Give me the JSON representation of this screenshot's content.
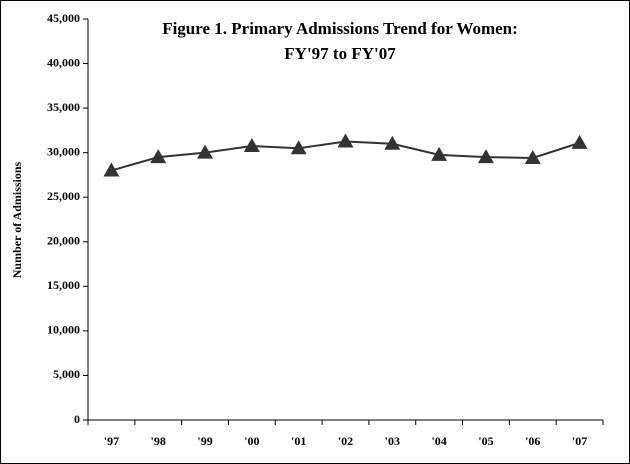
{
  "chart_data": {
    "type": "line",
    "title": [
      "Figure 1. Primary Admissions Trend for Women:",
      "FY'97 to FY'07"
    ],
    "y_label": "Number of Admissions",
    "categories": [
      "'97",
      "'98",
      "'99",
      "'00",
      "'01",
      "'02",
      "'03",
      "'04",
      "'05",
      "'06",
      "'07"
    ],
    "series": [
      {
        "color": "#333333",
        "values": [
          28000,
          29500,
          30000,
          30750,
          30500,
          31250,
          31000,
          29750,
          29500,
          29400,
          31100
        ]
      }
    ],
    "ylim": [
      0,
      45000
    ],
    "yticks": [
      0,
      {
        "value": 5000,
        "label": "5,000"
      },
      {
        "value": 10000,
        "label": "10,000"
      },
      {
        "value": 15000,
        "label": "15,000"
      },
      {
        "value": 20000,
        "label": "20,000"
      },
      {
        "value": 25000,
        "label": "25,000"
      },
      {
        "value": 30000,
        "label": "30,000"
      },
      {
        "value": 35000,
        "label": "35,000"
      },
      {
        "value": 40000,
        "label": "40,000"
      },
      {
        "value": 45000,
        "label": "45,000"
      }
    ]
  }
}
